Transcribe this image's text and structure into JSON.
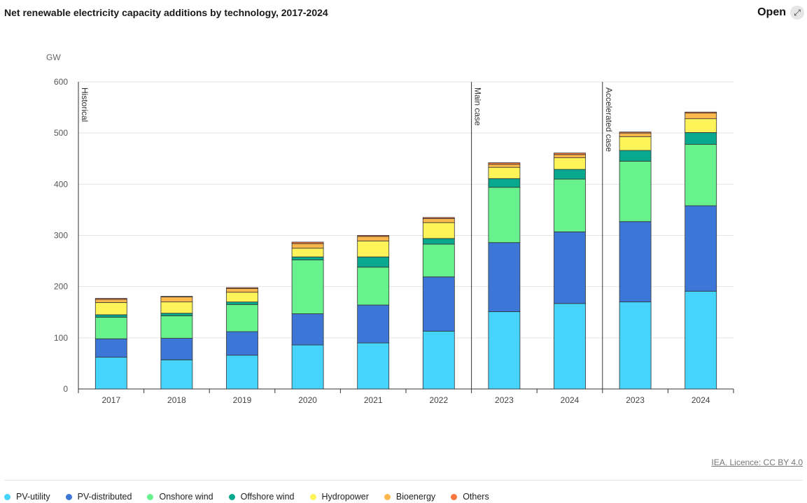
{
  "header": {
    "title": "Net renewable electricity capacity additions by technology, 2017-2024",
    "open_label": "Open",
    "open_icon": "expand-arrow-icon"
  },
  "footer": {
    "licence": "IEA. Licence: CC BY 4.0"
  },
  "chart_data": {
    "type": "bar",
    "stacked": true,
    "ylabel": "GW",
    "ylim": [
      0,
      600
    ],
    "yticks": [
      0,
      100,
      200,
      300,
      400,
      500,
      600
    ],
    "grid": true,
    "legend_position": "bottom",
    "categories": [
      "2017",
      "2018",
      "2019",
      "2020",
      "2021",
      "2022",
      "2023",
      "2024",
      "2023",
      "2024"
    ],
    "sections": [
      {
        "label": "Historical",
        "start_index": 0
      },
      {
        "label": "Main case",
        "start_index": 6
      },
      {
        "label": "Accelerated case",
        "start_index": 8
      }
    ],
    "series": [
      {
        "name": "PV-utility",
        "color": "#46d3fc",
        "values": [
          62,
          57,
          66,
          86,
          90,
          113,
          151,
          167,
          170,
          191
        ]
      },
      {
        "name": "PV-distributed",
        "color": "#3c76d6",
        "values": [
          36,
          42,
          46,
          61,
          74,
          106,
          135,
          140,
          157,
          167
        ]
      },
      {
        "name": "Onshore wind",
        "color": "#67f28d",
        "values": [
          42,
          44,
          53,
          105,
          74,
          64,
          108,
          103,
          118,
          120
        ]
      },
      {
        "name": "Offshore wind",
        "color": "#08a88e",
        "values": [
          5,
          5,
          5,
          6,
          20,
          11,
          17,
          19,
          21,
          23
        ]
      },
      {
        "name": "Hydropower",
        "color": "#fff35a",
        "values": [
          24,
          22,
          19,
          17,
          31,
          31,
          22,
          23,
          27,
          27
        ]
      },
      {
        "name": "Bioenergy",
        "color": "#fdb84d",
        "values": [
          6,
          10,
          7,
          9,
          9,
          8,
          6,
          6,
          7,
          11
        ]
      },
      {
        "name": "Others",
        "color": "#f7773e",
        "values": [
          2,
          1,
          2,
          3,
          2,
          2,
          3,
          3,
          2,
          2
        ]
      }
    ]
  }
}
